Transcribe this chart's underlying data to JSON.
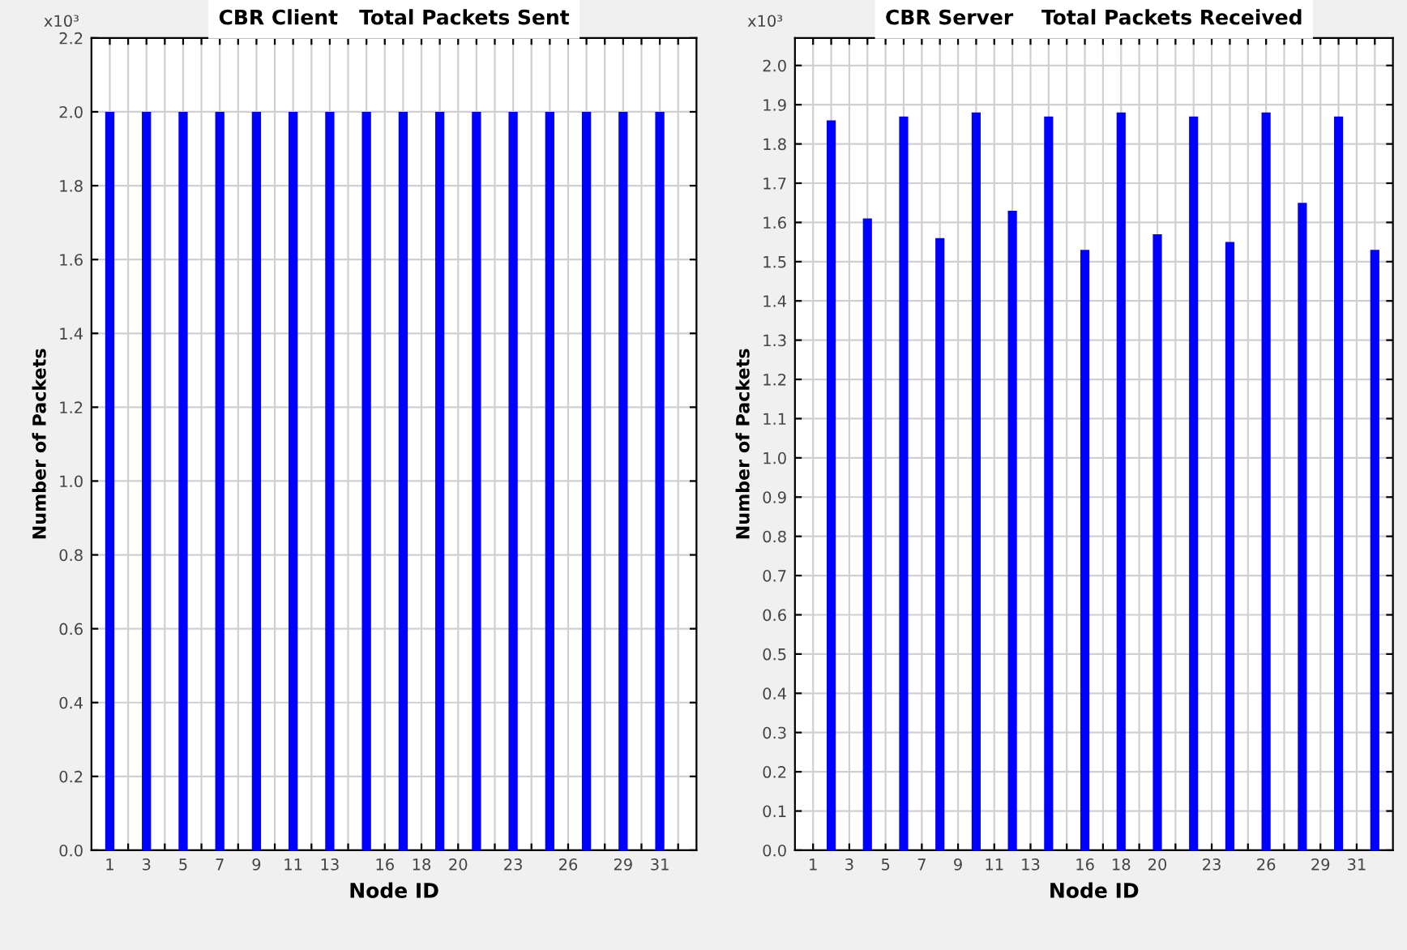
{
  "chart_data": [
    {
      "type": "bar",
      "title": "CBR Client   Total Packets Sent",
      "xlabel": "Node ID",
      "ylabel": "Number of Packets",
      "annotations": [
        "x10³"
      ],
      "x": [
        1,
        3,
        5,
        7,
        9,
        11,
        13,
        15,
        17,
        19,
        21,
        23,
        25,
        27,
        29,
        31
      ],
      "series": [
        {
          "color": "#0000ff",
          "values": [
            2.0,
            2.0,
            2.0,
            2.0,
            2.0,
            2.0,
            2.0,
            2.0,
            2.0,
            2.0,
            2.0,
            2.0,
            2.0,
            2.0,
            2.0,
            2.0
          ]
        }
      ],
      "xlim": [
        0,
        33
      ],
      "ylim": [
        0,
        2.2
      ],
      "yticks": [
        {
          "value": 0,
          "label": "0.0"
        },
        0.2,
        0.4,
        0.6,
        0.8,
        {
          "value": 1,
          "label": "1.0"
        },
        1.2,
        1.4,
        1.6,
        1.8,
        {
          "value": 2,
          "label": "2.0"
        },
        2.2
      ],
      "xticks": [
        1,
        {
          "value": 2,
          "label": null
        },
        3,
        {
          "value": 4,
          "label": null
        },
        5,
        {
          "value": 6,
          "label": null
        },
        7,
        {
          "value": 8,
          "label": null
        },
        9,
        {
          "value": 10,
          "label": null
        },
        11,
        {
          "value": 12,
          "label": null
        },
        13,
        {
          "value": 14,
          "label": null
        },
        {
          "value": 15,
          "label": null
        },
        16,
        {
          "value": 17,
          "label": null
        },
        18,
        {
          "value": 19,
          "label": null
        },
        20,
        {
          "value": 21,
          "label": null
        },
        {
          "value": 22,
          "label": null
        },
        23,
        {
          "value": 24,
          "label": null
        },
        {
          "value": 25,
          "label": null
        },
        26,
        {
          "value": 27,
          "label": null
        },
        {
          "value": 28,
          "label": null
        },
        29,
        {
          "value": 30,
          "label": null
        },
        31,
        {
          "value": 32,
          "label": null
        }
      ],
      "grid": true
    },
    {
      "type": "bar",
      "title": "CBR Server    Total Packets Received",
      "xlabel": "Node ID",
      "ylabel": "Number of Packets",
      "annotations": [
        "x10³"
      ],
      "x": [
        2,
        4,
        6,
        8,
        10,
        12,
        14,
        16,
        18,
        20,
        22,
        24,
        26,
        28,
        30,
        32
      ],
      "series": [
        {
          "color": "#0000ff",
          "values": [
            1.86,
            1.61,
            1.87,
            1.56,
            1.88,
            1.63,
            1.87,
            1.53,
            1.88,
            1.57,
            1.87,
            1.55,
            1.88,
            1.65,
            1.87,
            1.53
          ]
        }
      ],
      "xlim": [
        0,
        33
      ],
      "ylim": [
        0,
        2.07
      ],
      "yticks": [
        {
          "value": 0,
          "label": "0.0"
        },
        0.1,
        0.2,
        0.3,
        0.4,
        0.5,
        0.6,
        0.7,
        0.8,
        0.9,
        {
          "value": 1,
          "label": "1.0"
        },
        1.1,
        1.2,
        1.3,
        1.4,
        1.5,
        1.6,
        1.7,
        1.8,
        1.9,
        {
          "value": 2,
          "label": "2.0"
        }
      ],
      "xticks": [
        1,
        {
          "value": 2,
          "label": null
        },
        3,
        {
          "value": 4,
          "label": null
        },
        5,
        {
          "value": 6,
          "label": null
        },
        7,
        {
          "value": 8,
          "label": null
        },
        9,
        {
          "value": 10,
          "label": null
        },
        11,
        {
          "value": 12,
          "label": null
        },
        13,
        {
          "value": 14,
          "label": null
        },
        {
          "value": 15,
          "label": null
        },
        16,
        {
          "value": 17,
          "label": null
        },
        18,
        {
          "value": 19,
          "label": null
        },
        20,
        {
          "value": 21,
          "label": null
        },
        {
          "value": 22,
          "label": null
        },
        23,
        {
          "value": 24,
          "label": null
        },
        {
          "value": 25,
          "label": null
        },
        26,
        {
          "value": 27,
          "label": null
        },
        {
          "value": 28,
          "label": null
        },
        29,
        {
          "value": 30,
          "label": null
        },
        31,
        {
          "value": 32,
          "label": null
        }
      ],
      "grid": true
    }
  ]
}
